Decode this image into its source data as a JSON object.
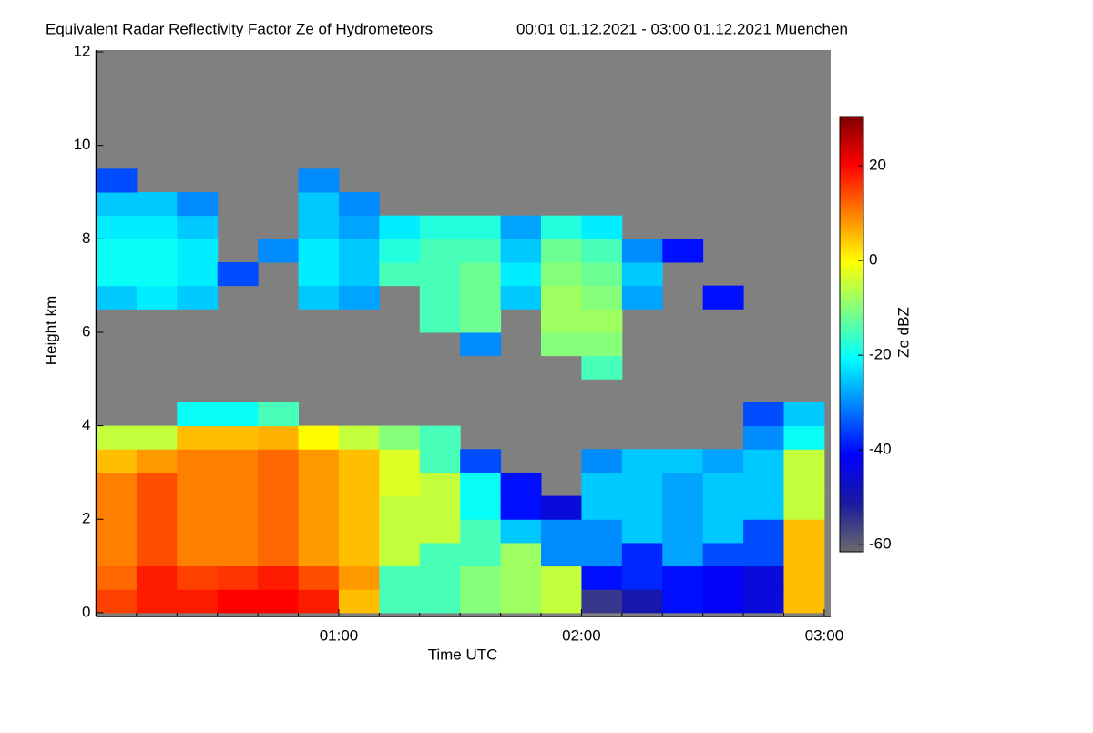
{
  "chart_data": {
    "type": "heatmap",
    "title": "Equivalent Radar Reflectivity Factor Ze of Hydrometeors",
    "subtitle": "00:01 01.12.2021 - 03:00 01.12.2021 Muenchen",
    "x_label": "Time UTC",
    "y_label": "Height km",
    "colorbar_label": "Ze dBZ",
    "xlim": [
      0,
      181.6
    ],
    "ylim": [
      -0.08,
      12.04
    ],
    "xticks": [
      {
        "value": 60,
        "label": "01:00"
      },
      {
        "value": 120,
        "label": "02:00"
      },
      {
        "value": 180,
        "label": "03:00"
      }
    ],
    "xminorticks": [
      10,
      20,
      30,
      40,
      50,
      70,
      80,
      90,
      100,
      110,
      130,
      140,
      150,
      160,
      170
    ],
    "yticks": [
      0,
      2,
      4,
      6,
      8,
      10,
      12
    ],
    "clim": [
      -61.5,
      30.4
    ],
    "cticks": [
      -60,
      -40,
      -20,
      0,
      20
    ],
    "colormap": [
      "#6a6a6a",
      "#1a1aa0",
      "#0000ff",
      "#0080ff",
      "#00ffff",
      "#80ff80",
      "#ffff00",
      "#ff8000",
      "#ff0000",
      "#800000"
    ],
    "background": "#808080",
    "xbins": [
      0,
      10,
      20,
      30,
      40,
      50,
      60,
      70,
      80,
      90,
      100,
      110,
      120,
      130,
      140,
      150,
      160,
      170,
      180
    ],
    "ybins": [
      0,
      0.5,
      1,
      1.5,
      2,
      2.5,
      3,
      3.5,
      4,
      4.5,
      5,
      5.5,
      6,
      6.5,
      7,
      7.5,
      8,
      8.5,
      9,
      9.5
    ],
    "z": [
      [
        15,
        18,
        18,
        20,
        20,
        18,
        5,
        -15,
        -15,
        -10,
        -8,
        -5,
        -55,
        -50,
        -40,
        -42,
        -45,
        5
      ],
      [
        12,
        18,
        15,
        16,
        18,
        14,
        8,
        -15,
        -15,
        -10,
        -8,
        -5,
        -40,
        -38,
        -40,
        -42,
        -45,
        5
      ],
      [
        10,
        14,
        10,
        10,
        12,
        8,
        5,
        -5,
        -15,
        -15,
        -8,
        -30,
        -30,
        -38,
        -28,
        -35,
        -35,
        5
      ],
      [
        10,
        14,
        10,
        10,
        12,
        8,
        5,
        -5,
        -5,
        -15,
        -25,
        -30,
        -30,
        -25,
        -28,
        -25,
        -35,
        5
      ],
      [
        10,
        14,
        10,
        10,
        12,
        8,
        5,
        -5,
        -5,
        -20,
        -40,
        -45,
        -25,
        -25,
        -28,
        -25,
        -25,
        -5
      ],
      [
        10,
        14,
        10,
        10,
        12,
        8,
        5,
        -3,
        -5,
        -20,
        -40,
        null,
        -25,
        -25,
        -28,
        -25,
        -25,
        -5
      ],
      [
        5,
        8,
        10,
        10,
        12,
        8,
        5,
        -3,
        -15,
        -35,
        null,
        null,
        -30,
        -25,
        -25,
        -28,
        -25,
        -5
      ],
      [
        -5,
        -5,
        5,
        5,
        6,
        0,
        -5,
        -10,
        -15,
        null,
        null,
        null,
        null,
        null,
        null,
        null,
        -30,
        -20
      ],
      [
        null,
        null,
        -20,
        -20,
        -15,
        null,
        null,
        null,
        null,
        null,
        null,
        null,
        null,
        null,
        null,
        null,
        -35,
        -25
      ],
      [
        null,
        null,
        null,
        null,
        null,
        null,
        null,
        null,
        null,
        null,
        null,
        null,
        null,
        null,
        null,
        null,
        null,
        null
      ],
      [
        null,
        null,
        null,
        null,
        null,
        null,
        null,
        null,
        null,
        null,
        null,
        null,
        -15,
        null,
        null,
        null,
        null,
        null
      ],
      [
        null,
        null,
        null,
        null,
        null,
        null,
        null,
        null,
        null,
        -30,
        null,
        -10,
        -10,
        null,
        null,
        null,
        null,
        null
      ],
      [
        null,
        null,
        null,
        null,
        null,
        null,
        null,
        null,
        -15,
        -12,
        null,
        -8,
        -8,
        null,
        null,
        null,
        null,
        null
      ],
      [
        -25,
        -22,
        -25,
        null,
        null,
        -25,
        -28,
        null,
        -15,
        -12,
        -25,
        -8,
        -10,
        -28,
        null,
        -40,
        null,
        null
      ],
      [
        -20,
        -20,
        -22,
        -35,
        null,
        -22,
        -25,
        -15,
        -15,
        -12,
        -22,
        -10,
        -12,
        -25,
        null,
        null,
        null,
        null
      ],
      [
        -20,
        -20,
        -22,
        null,
        -30,
        -22,
        -25,
        -18,
        -15,
        -15,
        -25,
        -12,
        -15,
        -30,
        -40,
        null,
        null,
        null
      ],
      [
        -22,
        -22,
        -25,
        null,
        null,
        -25,
        -28,
        -22,
        -18,
        -18,
        -28,
        -18,
        -22,
        null,
        null,
        null,
        null,
        null
      ],
      [
        -25,
        -25,
        -30,
        null,
        null,
        -25,
        -30,
        null,
        null,
        null,
        null,
        null,
        null,
        null,
        null,
        null,
        null,
        null
      ],
      [
        -35,
        null,
        null,
        null,
        null,
        -30,
        null,
        null,
        null,
        null,
        null,
        null,
        null,
        null,
        null,
        null,
        null,
        null
      ]
    ]
  }
}
